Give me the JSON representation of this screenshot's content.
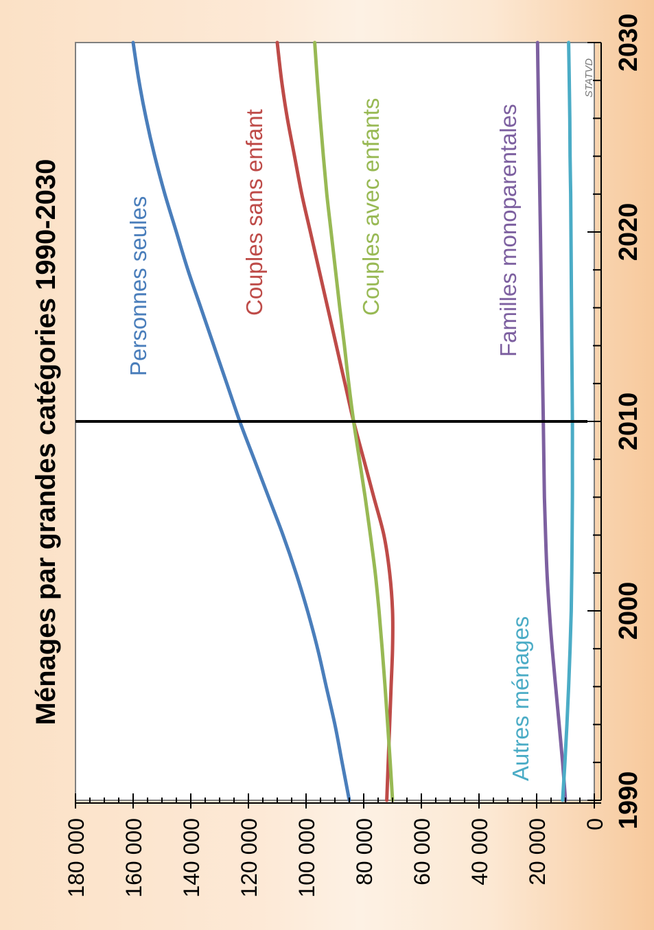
{
  "chart_data": {
    "type": "line",
    "title": "Ménages par grandes catégories 1990-2030",
    "source": "STATVD",
    "xlim": [
      1990,
      2030
    ],
    "ylim": [
      0,
      180000
    ],
    "x_ticks": [
      1990,
      2000,
      2010,
      2020,
      2030
    ],
    "x_tick_labels": [
      "1990",
      "2000",
      "2010",
      "2020",
      "2030"
    ],
    "y_ticks": [
      0,
      20000,
      40000,
      60000,
      80000,
      100000,
      120000,
      140000,
      160000,
      180000
    ],
    "y_tick_labels": [
      "0",
      "20 000",
      "40 000",
      "60 000",
      "80 000",
      "100 000",
      "120 000",
      "140 000",
      "160 000",
      "180 000"
    ],
    "reference_line_x": 2010,
    "grid": false,
    "x": [
      1990,
      1992,
      1994,
      1996,
      1998,
      2000,
      2002,
      2004,
      2006,
      2008,
      2010,
      2012,
      2014,
      2016,
      2018,
      2020,
      2022,
      2024,
      2026,
      2028,
      2030
    ],
    "series": [
      {
        "name": "Personnes seules",
        "color": "#4a7ebb",
        "values": [
          85000,
          87500,
          90000,
          93000,
          96000,
          99500,
          103500,
          108000,
          113000,
          118000,
          123000,
          127500,
          132000,
          136500,
          141000,
          145000,
          149000,
          152500,
          155500,
          158000,
          160000
        ]
      },
      {
        "name": "Couples sans enfant",
        "color": "#be4b48",
        "values": [
          72000,
          71500,
          71000,
          70500,
          70000,
          70000,
          71000,
          73000,
          76500,
          80000,
          83500,
          86500,
          89500,
          92500,
          95500,
          98500,
          101500,
          104000,
          106500,
          108500,
          110000
        ]
      },
      {
        "name": "Couples avec enfants",
        "color": "#98b954",
        "values": [
          70000,
          70800,
          71700,
          72600,
          73600,
          74700,
          76000,
          77700,
          79500,
          81500,
          83500,
          85200,
          86700,
          88300,
          89800,
          91300,
          92800,
          94000,
          95100,
          96100,
          97000
        ]
      },
      {
        "name": "Familles monoparentales",
        "color": "#7d60a0",
        "values": [
          10000,
          11000,
          12200,
          13400,
          14600,
          15600,
          16400,
          16900,
          17300,
          17500,
          17700,
          17900,
          18100,
          18300,
          18500,
          18700,
          18900,
          19100,
          19300,
          19500,
          19700
        ]
      },
      {
        "name": "Autres ménages",
        "color": "#4bacc6",
        "values": [
          11000,
          10200,
          9500,
          8900,
          8400,
          8000,
          7800,
          7700,
          7600,
          7600,
          7600,
          7700,
          7800,
          7900,
          8000,
          8100,
          8200,
          8400,
          8500,
          8700,
          8900
        ]
      }
    ]
  }
}
